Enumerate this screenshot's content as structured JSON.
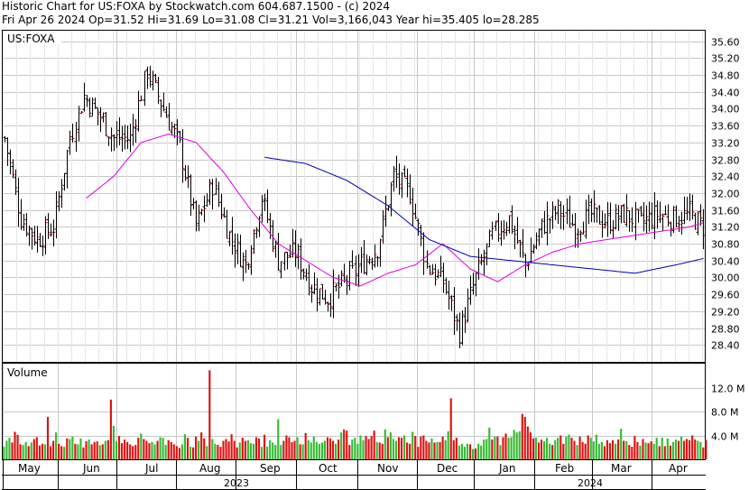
{
  "header": {
    "line1": "Historic Chart for US:FOXA by Stockwatch.com 604.687.1500 - (c) 2024",
    "line2": "Fri Apr 26 2024   Op=31.52  Hi=31.69  Lo=31.08  Cl=31.21  Vol=3,166,043  Year hi=35.405  lo=28.285"
  },
  "chart_data": [
    {
      "type": "ohlc",
      "symbol_label": "US:FOXA",
      "y_ticks": [
        "35.60",
        "35.20",
        "34.80",
        "34.40",
        "34.00",
        "33.60",
        "33.20",
        "32.80",
        "32.40",
        "32.00",
        "31.60",
        "31.20",
        "30.80",
        "30.40",
        "30.00",
        "29.60",
        "29.20",
        "28.80",
        "28.40"
      ],
      "ylim": [
        28.0,
        35.85
      ],
      "x_month_labels": [
        "May",
        "Jun",
        "Jul",
        "Aug",
        "Sep",
        "Oct",
        "Nov",
        "Dec",
        "Jan",
        "Feb",
        "Mar",
        "Apr"
      ],
      "x_year_labels": [
        "2023",
        "2024"
      ],
      "series": [
        {
          "name": "price_close_path",
          "x_day": [
            0,
            6,
            12,
            18,
            24,
            29,
            35,
            40,
            46,
            52,
            58,
            64,
            70,
            76,
            82,
            88,
            94,
            100,
            106,
            112,
            118,
            124,
            130,
            136,
            142,
            148,
            154,
            160,
            166,
            172,
            178,
            184,
            190,
            196,
            202,
            208,
            214,
            220,
            226,
            232,
            238,
            244,
            250,
            255
          ],
          "values": [
            33.3,
            31.4,
            30.9,
            31.2,
            33.3,
            34.3,
            33.8,
            33.3,
            33.3,
            34.9,
            34.0,
            33.1,
            31.2,
            32.2,
            31.0,
            30.3,
            31.9,
            30.4,
            30.6,
            29.8,
            29.5,
            29.9,
            30.3,
            30.7,
            32.4,
            32.0,
            30.3,
            29.9,
            28.7,
            30.0,
            31.0,
            31.4,
            30.3,
            31.2,
            31.6,
            31.2,
            31.5,
            31.3,
            31.5,
            31.3,
            31.5,
            31.4,
            31.5,
            31.2
          ]
        },
        {
          "name": "ma_short",
          "x_day": [
            30,
            40,
            50,
            60,
            70,
            80,
            90,
            100,
            110,
            120,
            130,
            140,
            150,
            160,
            170,
            180,
            190,
            200,
            210,
            220,
            230,
            240,
            250,
            255
          ],
          "values": [
            31.88,
            32.4,
            33.2,
            33.4,
            33.2,
            32.5,
            31.6,
            30.8,
            30.4,
            30.0,
            29.8,
            30.1,
            30.3,
            30.8,
            30.2,
            29.9,
            30.3,
            30.6,
            30.8,
            30.9,
            31.0,
            31.1,
            31.2,
            31.3
          ]
        },
        {
          "name": "ma_long",
          "x_day": [
            95,
            110,
            125,
            140,
            155,
            170,
            185,
            200,
            215,
            230,
            245,
            255
          ],
          "values": [
            32.85,
            32.7,
            32.3,
            31.7,
            30.9,
            30.5,
            30.4,
            30.3,
            30.2,
            30.1,
            30.3,
            30.45
          ]
        }
      ]
    },
    {
      "type": "bar",
      "title": "Volume",
      "y_ticks": [
        "12.0 M",
        "8.0 M",
        "4.0 M"
      ],
      "ylim": [
        0,
        16
      ],
      "series": [
        {
          "name": "volume_m",
          "values": [
            2.1,
            3.1,
            3.6,
            2.8,
            4.6,
            4.1,
            2.5,
            2.4,
            2.9,
            2.2,
            2.8,
            3.4,
            3.7,
            2.3,
            2.6,
            2.5,
            7.1,
            2.2,
            3.1,
            4.5,
            2.6,
            2.2,
            2.1,
            3.5,
            3.4,
            3.8,
            2.6,
            2.5,
            3.5,
            2.0,
            3.0,
            3.3,
            2.5,
            2.9,
            3.0,
            2.4,
            2.5,
            3.1,
            3.2,
            10.0,
            5.6,
            3.0,
            3.9,
            2.7,
            3.3,
            2.9,
            2.5,
            2.2,
            2.4,
            3.6,
            4.3,
            3.4,
            3.1,
            2.7,
            2.9,
            2.5,
            3.1,
            3.7,
            3.6,
            2.4,
            3.2,
            2.9,
            2.5,
            2.2,
            1.9,
            2.5,
            4.2,
            3.6,
            2.1,
            2.0,
            3.8,
            3.1,
            4.5,
            3.5,
            2.2,
            14.9,
            3.4,
            2.6,
            2.4,
            2.1,
            3.1,
            3.4,
            3.0,
            4.2,
            3.1,
            2.0,
            2.8,
            3.6,
            3.1,
            3.2,
            2.7,
            2.6,
            3.7,
            3.5,
            2.1,
            4.1,
            2.1,
            3.2,
            2.8,
            2.4,
            6.7,
            2.4,
            3.1,
            4.0,
            3.7,
            2.9,
            3.1,
            3.7,
            2.5,
            2.5,
            4.4,
            3.2,
            2.8,
            3.8,
            2.9,
            2.6,
            2.8,
            3.1,
            3.7,
            3.5,
            3.1,
            2.6,
            3.3,
            4.5,
            5.0,
            4.8,
            2.4,
            3.3,
            3.6,
            2.6,
            4.0,
            3.2,
            3.9,
            3.4,
            3.9,
            4.8,
            2.9,
            2.8,
            2.6,
            5.0,
            3.7,
            4.5,
            3.4,
            3.1,
            3.7,
            3.6,
            4.0,
            2.8,
            2.6,
            4.6,
            3.9,
            2.1,
            3.8,
            4.0,
            3.1,
            2.8,
            3.5,
            2.8,
            2.9,
            2.9,
            3.8,
            3.2,
            4.7,
            10.2,
            3.2,
            3.6,
            2.3,
            2.6,
            2.1,
            2.6,
            2.5,
            1.7,
            1.8,
            2.6,
            2.3,
            3.3,
            3.4,
            5.3,
            3.3,
            3.8,
            3.8,
            2.4,
            3.7,
            4.3,
            3.6,
            3.7,
            4.9,
            4.5,
            4.7,
            7.6,
            7.1,
            5.5,
            4.5,
            3.5,
            3.6,
            2.8,
            3.3,
            3.0,
            3.6,
            2.6,
            2.4,
            3.2,
            3.6,
            4.0,
            2.6,
            3.8,
            4.1,
            3.6,
            3.1,
            2.4,
            3.8,
            2.9,
            2.6,
            4.0,
            3.6,
            3.0,
            4.1,
            2.6,
            2.9,
            2.2,
            3.2,
            2.7,
            3.2,
            2.6,
            3.3,
            5.1,
            3.1,
            3.0,
            2.4,
            2.1,
            3.9,
            2.9,
            2.3,
            3.4,
            2.8,
            2.7,
            3.0,
            2.6,
            3.6,
            2.2,
            3.6,
            2.2,
            3.5,
            2.3,
            2.9,
            3.3,
            3.1,
            3.8,
            3.1,
            3.4,
            3.2,
            4.0,
            3.3,
            3.1,
            2.9,
            2.0,
            3.2
          ]
        }
      ]
    }
  ]
}
